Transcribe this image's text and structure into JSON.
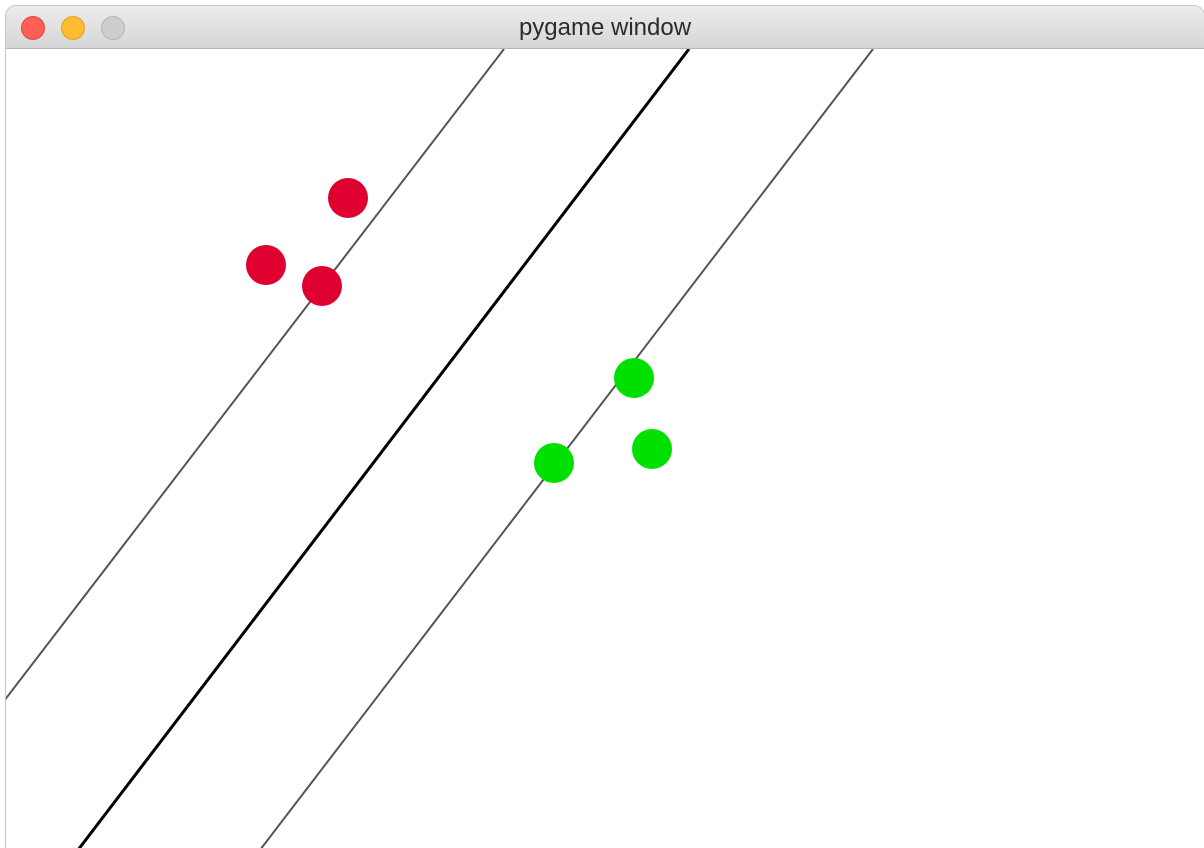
{
  "window": {
    "title": "pygame window",
    "buttons": [
      {
        "name": "close",
        "color": "#ff5f57",
        "border": "#e0443e"
      },
      {
        "name": "minimize",
        "color": "#febc2e",
        "border": "#dea123"
      },
      {
        "name": "zoom",
        "color": "#cdcdcd",
        "border": "#b5b5b5"
      }
    ]
  },
  "scene": {
    "background": "#ffffff",
    "colors": {
      "class_a": "#e0002f",
      "class_b": "#00e000",
      "decision_line": "#000000",
      "margin_line": "#555555"
    }
  }
}
